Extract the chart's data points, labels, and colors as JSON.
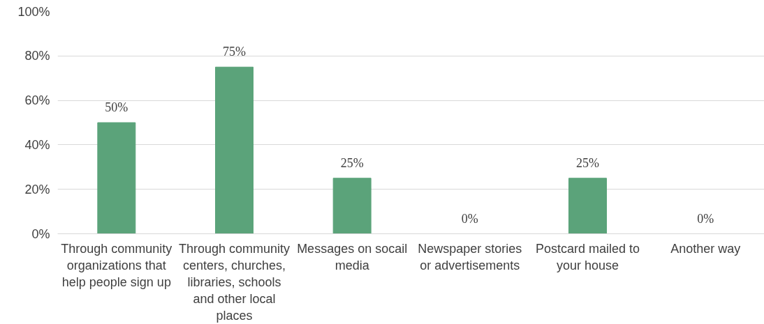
{
  "chart_data": {
    "type": "bar",
    "categories": [
      "Through community organizations that help people sign up",
      "Through community centers, churches, libraries, schools and other local places",
      "Messages on socail media",
      "Newspaper stories or advertisements",
      "Postcard mailed to your house",
      "Another way"
    ],
    "values": [
      50,
      75,
      25,
      0,
      25,
      0
    ],
    "value_labels": [
      "50%",
      "75%",
      "25%",
      "0%",
      "25%",
      "0%"
    ],
    "color": "#5ba37a",
    "ylim": [
      0,
      100
    ],
    "yticks": [
      {
        "value": 0,
        "label": "0%"
      },
      {
        "value": 20,
        "label": "20%"
      },
      {
        "value": 40,
        "label": "40%"
      },
      {
        "value": 60,
        "label": "60%"
      },
      {
        "value": 80,
        "label": "80%"
      },
      {
        "value": 100,
        "label": "100%"
      }
    ],
    "grid": "y"
  }
}
